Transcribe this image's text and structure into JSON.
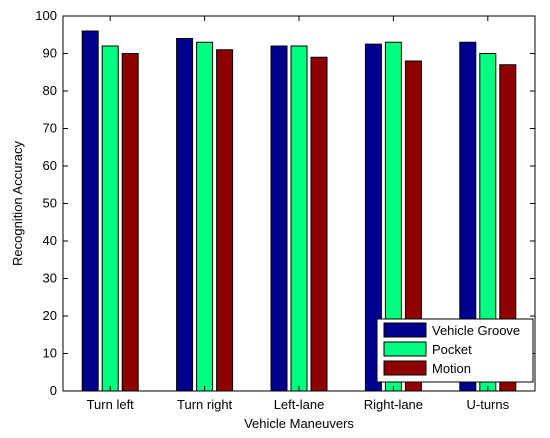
{
  "chart_data": {
    "type": "bar",
    "xlabel": "Vehicle Maneuvers",
    "ylabel": "Recognition Accuracy",
    "ylim": [
      0,
      100
    ],
    "yticks": [
      0,
      10,
      20,
      30,
      40,
      50,
      60,
      70,
      80,
      90,
      100
    ],
    "grid": false,
    "legend_position": "bottom-right",
    "categories": [
      "Turn left",
      "Turn right",
      "Left-lane",
      "Right-lane",
      "U-turns"
    ],
    "series": [
      {
        "name": "Vehicle Groove",
        "color": "#00008f",
        "values": [
          96,
          94,
          92,
          92.5,
          93
        ]
      },
      {
        "name": "Pocket",
        "color": "#00ff80",
        "values": [
          92,
          93,
          92,
          93,
          90
        ]
      },
      {
        "name": "Motion",
        "color": "#8f0000",
        "values": [
          90,
          91,
          89,
          88,
          87
        ]
      }
    ]
  }
}
